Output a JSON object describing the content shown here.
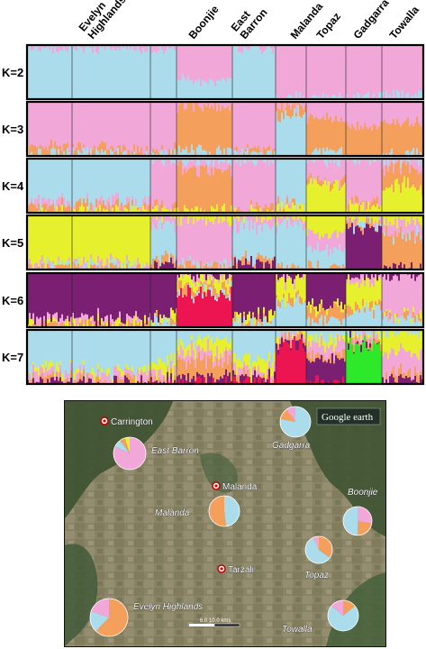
{
  "colors": {
    "k2": [
      "#f1a7d8",
      "#aadcec"
    ],
    "k3": [
      "#f1a7d8",
      "#f4a05c",
      "#aadcec"
    ],
    "k4": [
      "#aadcec",
      "#f1a7d8",
      "#f4a05c",
      "#e6f02c"
    ],
    "k5": [
      "#e6f02c",
      "#f1a7d8",
      "#aadcec",
      "#f4a05c",
      "#7a1f72"
    ],
    "k6": [
      "#7a1f72",
      "#f1a7d8",
      "#e6f02c",
      "#f4a05c",
      "#aadcec",
      "#ec1551"
    ],
    "k7": [
      "#aadcec",
      "#e6f02c",
      "#f1a7d8",
      "#f4a05c",
      "#7a1f72",
      "#ec1551",
      "#2ee82a"
    ]
  },
  "chart_data": {
    "type": "stacked-bar",
    "populations": [
      {
        "name": "Evelyn\nHighlands",
        "label_lines": [
          "Evelyn",
          "Highlands"
        ],
        "individuals": 40
      },
      {
        "name": "Boonjie",
        "label_lines": [
          "Boonjie"
        ],
        "individuals": 28
      },
      {
        "name": "East\nBarron",
        "label_lines": [
          "East",
          "Barron"
        ],
        "individuals": 14
      },
      {
        "name": "Malanda",
        "label_lines": [
          "Malanda"
        ],
        "individuals": 16
      },
      {
        "name": "Topaz",
        "label_lines": [
          "Topaz"
        ],
        "individuals": 14
      },
      {
        "name": "Gadgarra",
        "label_lines": [
          "Gadgarra"
        ],
        "individuals": 14
      },
      {
        "name": "Towalla",
        "label_lines": [
          "Towalla"
        ],
        "individuals": 14
      }
    ],
    "panels": [
      {
        "k_label": "K=2",
        "k": 2,
        "ymax": 1,
        "profiles": [
          [
            0.05,
            0.95
          ],
          [
            0.65,
            0.35
          ],
          [
            0.08,
            0.92
          ],
          [
            0.97,
            0.03
          ],
          [
            0.97,
            0.03
          ],
          [
            0.97,
            0.03
          ],
          [
            0.92,
            0.08
          ]
        ]
      },
      {
        "k_label": "K=3",
        "k": 3,
        "ymax": 1,
        "profiles": [
          [
            0.85,
            0.1,
            0.05
          ],
          [
            0.1,
            0.8,
            0.1
          ],
          [
            0.92,
            0.04,
            0.04
          ],
          [
            0.08,
            0.15,
            0.77
          ],
          [
            0.3,
            0.65,
            0.05
          ],
          [
            0.45,
            0.55,
            0.0
          ],
          [
            0.4,
            0.55,
            0.05
          ]
        ]
      },
      {
        "k_label": "K=4",
        "k": 4,
        "ymax": 1,
        "profiles": [
          [
            0.8,
            0.08,
            0.08,
            0.04
          ],
          [
            0.05,
            0.15,
            0.75,
            0.05
          ],
          [
            0.05,
            0.85,
            0.05,
            0.05
          ],
          [
            0.8,
            0.05,
            0.05,
            0.1
          ],
          [
            0.05,
            0.35,
            0.05,
            0.55
          ],
          [
            0.05,
            0.75,
            0.1,
            0.1
          ],
          [
            0.1,
            0.1,
            0.35,
            0.45
          ]
        ]
      },
      {
        "k_label": "K=5",
        "k": 5,
        "ymax": 1,
        "profiles": [
          [
            0.92,
            0.03,
            0.03,
            0.02,
            0.0
          ],
          [
            0.1,
            0.8,
            0.05,
            0.05,
            0.0
          ],
          [
            0.05,
            0.15,
            0.6,
            0.1,
            0.1
          ],
          [
            0.1,
            0.1,
            0.75,
            0.05,
            0.0
          ],
          [
            0.35,
            0.3,
            0.3,
            0.05,
            0.0
          ],
          [
            0.05,
            0.05,
            0.05,
            0.05,
            0.8
          ],
          [
            0.15,
            0.2,
            0.05,
            0.55,
            0.05
          ]
        ]
      },
      {
        "k_label": "K=6",
        "k": 6,
        "ymax": 1,
        "profiles": [
          [
            0.85,
            0.05,
            0.05,
            0.05,
            0.0,
            0.0
          ],
          [
            0.05,
            0.05,
            0.15,
            0.1,
            0.05,
            0.6
          ],
          [
            0.75,
            0.0,
            0.1,
            0.05,
            0.1,
            0.0
          ],
          [
            0.05,
            0.05,
            0.35,
            0.1,
            0.45,
            0.0
          ],
          [
            0.6,
            0.0,
            0.1,
            0.2,
            0.1,
            0.0
          ],
          [
            0.05,
            0.1,
            0.45,
            0.1,
            0.3,
            0.0
          ],
          [
            0.05,
            0.7,
            0.05,
            0.05,
            0.15,
            0.0
          ]
        ]
      },
      {
        "k_label": "K=7",
        "k": 7,
        "ymax": 1,
        "profiles": [
          [
            0.75,
            0.05,
            0.1,
            0.05,
            0.05,
            0.0,
            0.0
          ],
          [
            0.2,
            0.2,
            0.15,
            0.3,
            0.1,
            0.05,
            0.0
          ],
          [
            0.55,
            0.2,
            0.1,
            0.05,
            0.05,
            0.05,
            0.0
          ],
          [
            0.05,
            0.05,
            0.05,
            0.05,
            0.1,
            0.7,
            0.0
          ],
          [
            0.15,
            0.1,
            0.2,
            0.1,
            0.4,
            0.05,
            0.0
          ],
          [
            0.05,
            0.05,
            0.05,
            0.05,
            0.05,
            0.0,
            0.75
          ],
          [
            0.05,
            0.35,
            0.4,
            0.1,
            0.1,
            0.0,
            0.0
          ]
        ]
      }
    ]
  },
  "map": {
    "brand": "Google earth",
    "scale_label": "6.0    10.0 kms",
    "towns": [
      {
        "name": "Carrington"
      },
      {
        "name": "Malanda"
      },
      {
        "name": "Tarzali"
      }
    ],
    "sites": [
      {
        "name": "East Barron",
        "pie": [
          {
            "color": "#f1a7d8",
            "value": 0.82
          },
          {
            "color": "#aadcec",
            "value": 0.08
          },
          {
            "color": "#f4a05c",
            "value": 0.05
          },
          {
            "color": "#e6f02c",
            "value": 0.05
          }
        ]
      },
      {
        "name": "Gadgarra",
        "pie": [
          {
            "color": "#aadcec",
            "value": 0.78
          },
          {
            "color": "#f4a05c",
            "value": 0.12
          },
          {
            "color": "#f1a7d8",
            "value": 0.1
          }
        ]
      },
      {
        "name": "Malanda",
        "pie": [
          {
            "color": "#aadcec",
            "value": 0.48
          },
          {
            "color": "#f4a05c",
            "value": 0.52
          }
        ]
      },
      {
        "name": "Boonjie",
        "pie": [
          {
            "color": "#f1a7d8",
            "value": 0.28
          },
          {
            "color": "#f4a05c",
            "value": 0.22
          },
          {
            "color": "#aadcec",
            "value": 0.5
          }
        ]
      },
      {
        "name": "Topaz",
        "pie": [
          {
            "color": "#f4a05c",
            "value": 0.35
          },
          {
            "color": "#aadcec",
            "value": 0.58
          },
          {
            "color": "#f1a7d8",
            "value": 0.07
          }
        ]
      },
      {
        "name": "Evelyn Highlands",
        "pie": [
          {
            "color": "#f4a05c",
            "value": 0.62
          },
          {
            "color": "#aadcec",
            "value": 0.18
          },
          {
            "color": "#f1a7d8",
            "value": 0.2
          }
        ]
      },
      {
        "name": "Towalla",
        "pie": [
          {
            "color": "#f4a05c",
            "value": 0.14
          },
          {
            "color": "#aadcec",
            "value": 0.72
          },
          {
            "color": "#f1a7d8",
            "value": 0.14
          }
        ]
      }
    ]
  }
}
